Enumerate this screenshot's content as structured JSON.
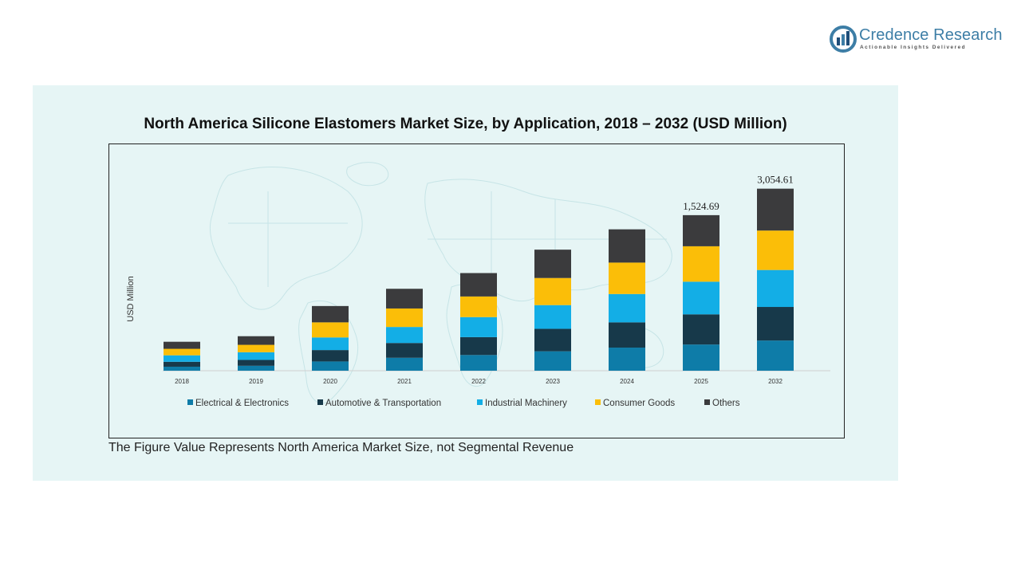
{
  "brand": {
    "name": "Credence Research",
    "tagline": "Actionable Insights Delivered",
    "colors": {
      "logo_blue": "#3d7ea6",
      "logo_dark": "#1f4e79"
    }
  },
  "footnote": "The Figure Value Represents North America Market Size, not Segmental Revenue",
  "chart_data": {
    "type": "bar",
    "stacked": true,
    "title": "North America Silicone Elastomers Market Size, by Application, 2018 – 2032 (USD Million)",
    "xlabel": "",
    "ylabel": "USD Million",
    "ylim": [
      0,
      3300
    ],
    "grid": false,
    "legend_position": "bottom",
    "categories": [
      "2018",
      "2019",
      "2020",
      "2021",
      "2022",
      "2023",
      "2024",
      "2025",
      "2032"
    ],
    "series": [
      {
        "name": "Electrical & Electronics",
        "color": "#0e7ca8",
        "values": [
          65,
          80,
          150,
          210,
          255,
          315,
          375,
          425,
          490
        ]
      },
      {
        "name": "Automotive & Transportation",
        "color": "#17394a",
        "values": [
          80,
          95,
          185,
          240,
          290,
          365,
          410,
          490,
          545
        ]
      },
      {
        "name": "Industrial Machinery",
        "color": "#13aee6",
        "values": [
          105,
          125,
          205,
          260,
          325,
          385,
          460,
          530,
          600
        ]
      },
      {
        "name": "Consumer Goods",
        "color": "#fbbe08",
        "values": [
          105,
          120,
          245,
          300,
          335,
          440,
          510,
          575,
          640
        ]
      },
      {
        "name": "Others",
        "color": "#3b3b3d",
        "values": [
          115,
          140,
          265,
          320,
          380,
          460,
          540,
          505,
          680
        ]
      }
    ],
    "data_labels": [
      {
        "category": "2025",
        "text": "1,524.69"
      },
      {
        "category": "2032",
        "text": "3,054.61"
      }
    ]
  }
}
